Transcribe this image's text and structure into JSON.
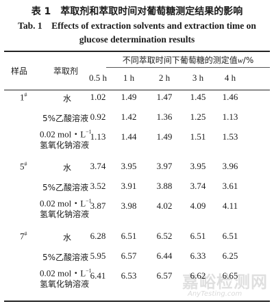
{
  "title_cn": "表 1　萃取剂和萃取时间对葡萄糖测定结果的影响",
  "title_en_line1": "Tab. 1　Effects of extraction solvents and extraction time on",
  "title_en_line2": "glucose determination results",
  "header": {
    "sample": "样品",
    "solvent": "萃取剂",
    "measured_prefix": "不同萃取时间下葡萄糖的测定值",
    "measured_var": "w",
    "measured_suffix": "/%",
    "times": [
      "0.5 h",
      "1 h",
      "2 h",
      "3 h",
      "4 h"
    ]
  },
  "solvent_labels": {
    "water": "水",
    "acetic": "5%乙酸溶液",
    "naoh_line1": "0.02 mol・L",
    "naoh_sup": "−1",
    "naoh_line2": "氢氧化钠溶液"
  },
  "groups": [
    {
      "sample": "1",
      "mark": "#",
      "water": [
        "1.02",
        "1.49",
        "1.47",
        "1.45",
        "1.46"
      ],
      "acetic": [
        "0.92",
        "1.42",
        "1.36",
        "1.25",
        "1.13"
      ],
      "naoh": [
        "1.13",
        "1.44",
        "1.49",
        "1.51",
        "1.53"
      ]
    },
    {
      "sample": "5",
      "mark": "#",
      "water": [
        "3.74",
        "3.95",
        "3.97",
        "3.95",
        "3.96"
      ],
      "acetic": [
        "3.52",
        "3.91",
        "3.88",
        "3.74",
        "3.61"
      ],
      "naoh": [
        "3.87",
        "3.98",
        "4.02",
        "4.09",
        "4.11"
      ]
    },
    {
      "sample": "7",
      "mark": "#",
      "water": [
        "6.28",
        "6.51",
        "6.52",
        "6.51",
        "6.51"
      ],
      "acetic": [
        "5.95",
        "6.57",
        "6.44",
        "6.33",
        "6.25"
      ],
      "naoh": [
        "6.41",
        "6.53",
        "6.57",
        "6.62",
        "6.65"
      ]
    }
  ],
  "watermark": {
    "cn": "嘉峪检测网",
    "en": "AnyTesting.com"
  }
}
